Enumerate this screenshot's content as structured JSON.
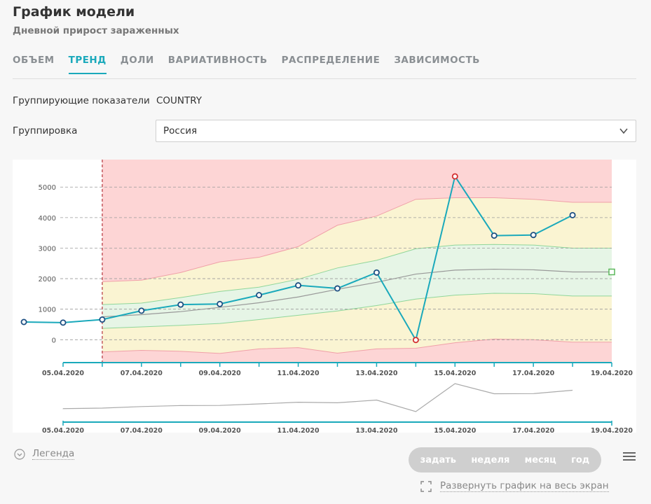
{
  "header": {
    "title": "График модели",
    "subtitle": "Дневной прирост зараженных"
  },
  "tabs": [
    {
      "label": "ОБЪЕМ",
      "active": false
    },
    {
      "label": "ТРЕНД",
      "active": true
    },
    {
      "label": "ДОЛИ",
      "active": false
    },
    {
      "label": "ВАРИАТИВНОСТЬ",
      "active": false
    },
    {
      "label": "РАСПРЕДЕЛЕНИЕ",
      "active": false
    },
    {
      "label": "ЗАВИСИМОСТЬ",
      "active": false
    }
  ],
  "form": {
    "grouping_indicators_label": "Группирующие показатели",
    "grouping_indicators_value": "COUNTRY",
    "grouping_label": "Группировка",
    "grouping_value": "Россия"
  },
  "chart_data": {
    "type": "line",
    "y_ticks": [
      0,
      1000,
      2000,
      3000,
      4000,
      5000
    ],
    "ylim": [
      -750,
      5900
    ],
    "x_tick_labels": [
      "05.04.2020",
      "07.04.2020",
      "09.04.2020",
      "11.04.2020",
      "13.04.2020",
      "15.04.2020",
      "17.04.2020",
      "19.04.2020"
    ],
    "x_dates": [
      "04.04.2020",
      "05.04.2020",
      "06.04.2020",
      "07.04.2020",
      "08.04.2020",
      "09.04.2020",
      "10.04.2020",
      "11.04.2020",
      "12.04.2020",
      "13.04.2020",
      "14.04.2020",
      "15.04.2020",
      "16.04.2020",
      "17.04.2020",
      "18.04.2020",
      "19.04.2020"
    ],
    "forecast_start": "06.04.2020",
    "series": [
      {
        "color": "#1aa9bb",
        "values": [
          580,
          560,
          660,
          950,
          1150,
          1170,
          1460,
          1780,
          1680,
          2200,
          -10,
          5350,
          3410,
          3430,
          4080,
          null
        ],
        "anomaly_color": "#d32f2f",
        "anomalies": [
          "14.04.2020",
          "15.04.2020"
        ]
      }
    ],
    "last_marker": {
      "date": "19.04.2020",
      "value": 2220,
      "color": "#5cb85c"
    },
    "bands": {
      "dates": [
        "06.04.2020",
        "07.04.2020",
        "08.04.2020",
        "09.04.2020",
        "10.04.2020",
        "11.04.2020",
        "12.04.2020",
        "13.04.2020",
        "14.04.2020",
        "15.04.2020",
        "16.04.2020",
        "17.04.2020",
        "18.04.2020",
        "19.04.2020"
      ],
      "outer_upper": [
        1900,
        1950,
        2200,
        2550,
        2700,
        3050,
        3750,
        4050,
        4600,
        4650,
        4650,
        4600,
        4500,
        4500
      ],
      "outer_lower": [
        -400,
        -350,
        -380,
        -450,
        -300,
        -260,
        -440,
        -300,
        -280,
        -100,
        20,
        0,
        -80,
        -80
      ],
      "inner_upper": [
        1150,
        1200,
        1380,
        1580,
        1720,
        1980,
        2350,
        2600,
        2980,
        3100,
        3120,
        3100,
        3000,
        3000
      ],
      "inner_lower": [
        370,
        420,
        470,
        530,
        660,
        800,
        940,
        1120,
        1330,
        1460,
        1520,
        1510,
        1430,
        1430
      ],
      "center": [
        750,
        820,
        920,
        1060,
        1210,
        1400,
        1650,
        1880,
        2150,
        2280,
        2310,
        2290,
        2220,
        2220
      ],
      "colors": {
        "outer": "#fdd5d5",
        "mid": "#faf4d2",
        "inner": "#e6f5e6",
        "center_line": "#999999",
        "upper_line": "#f0a0a8",
        "inner_line": "#8fd69a"
      }
    },
    "navigator_series": [
      580,
      560,
      660,
      950,
      1150,
      1170,
      1460,
      1780,
      1680,
      2200,
      -10,
      5350,
      3410,
      3430,
      4080,
      null
    ]
  },
  "bottom": {
    "legend_label": "Легенда",
    "periods": [
      "задать",
      "неделя",
      "месяц",
      "год"
    ],
    "fullscreen_label": "Развернуть график на весь экран"
  },
  "colors": {
    "accent": "#1aa9bb",
    "text_muted": "#8a8f93"
  }
}
